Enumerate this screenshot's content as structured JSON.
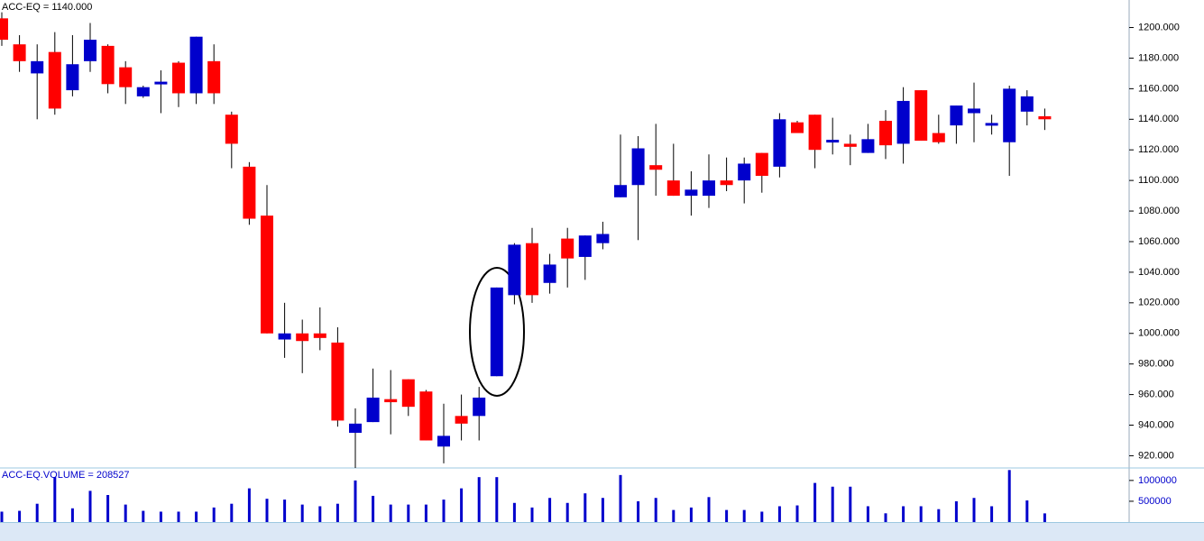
{
  "chart_data": [
    {
      "type": "candlestick",
      "title": "ACC-EQ = 1140.000",
      "open": [
        1206,
        1189,
        1170,
        1184,
        1159,
        1178,
        1188,
        1174,
        1155,
        1163,
        1177,
        1157,
        1178,
        1143,
        1109,
        1077,
        996,
        1000,
        1000,
        994,
        935,
        942,
        957,
        970,
        962,
        926,
        946,
        946,
        972,
        1025,
        1059,
        1033,
        1062,
        1050,
        1059,
        1089,
        1097,
        1110,
        1100,
        1090,
        1090,
        1100,
        1100,
        1118,
        1109,
        1138,
        1143,
        1125,
        1124,
        1118,
        1139,
        1124,
        1159,
        1131,
        1136,
        1144,
        1136,
        1125,
        1145,
        1142
      ],
      "high": [
        1210,
        1195,
        1189,
        1197,
        1195,
        1203,
        1189,
        1178,
        1162,
        1172,
        1178,
        1194,
        1189,
        1145,
        1112,
        1097,
        1020,
        1009,
        1017,
        1004,
        951,
        977,
        976,
        970,
        963,
        954,
        960,
        965,
        1030,
        1059,
        1069,
        1052,
        1069,
        1064,
        1073,
        1130,
        1129,
        1137,
        1124,
        1106,
        1117,
        1115,
        1115,
        1118,
        1144,
        1139,
        1143,
        1141,
        1130,
        1137,
        1146,
        1161,
        1159,
        1143,
        1149,
        1164,
        1143,
        1162,
        1159,
        1147
      ],
      "low": [
        1188,
        1171,
        1140,
        1143,
        1155,
        1171,
        1157,
        1150,
        1154,
        1144,
        1148,
        1150,
        1150,
        1108,
        1071,
        1000,
        984,
        974,
        989,
        939,
        912,
        942,
        934,
        946,
        930,
        915,
        930,
        930,
        972,
        1019,
        1020,
        1026,
        1030,
        1035,
        1055,
        1089,
        1061,
        1090,
        1090,
        1077,
        1082,
        1093,
        1085,
        1092,
        1102,
        1131,
        1108,
        1117,
        1110,
        1118,
        1114,
        1111,
        1126,
        1124,
        1124,
        1125,
        1130,
        1103,
        1136,
        1133
      ],
      "close": [
        1192,
        1178,
        1178,
        1147,
        1176,
        1192,
        1163,
        1161,
        1161,
        1164,
        1157,
        1194,
        1157,
        1124,
        1075,
        1000,
        1000,
        995,
        997,
        943,
        941,
        958,
        955,
        952,
        930,
        933,
        941,
        958,
        1030,
        1058,
        1025,
        1045,
        1049,
        1064,
        1065,
        1097,
        1121,
        1107,
        1090,
        1094,
        1100,
        1097,
        1111,
        1103,
        1140,
        1131,
        1120,
        1126,
        1122,
        1127,
        1123,
        1152,
        1126,
        1125,
        1149,
        1147,
        1137,
        1160,
        1155,
        1140
      ],
      "up_color": "#0000cc",
      "down_color": "#ff0000",
      "ylim": [
        912,
        1218
      ],
      "yticks": [
        {
          "value": 920,
          "label": "920.000"
        },
        {
          "value": 940,
          "label": "940.000"
        },
        {
          "value": 960,
          "label": "960.000"
        },
        {
          "value": 980,
          "label": "980.000"
        },
        {
          "value": 1000,
          "label": "1000.000"
        },
        {
          "value": 1020,
          "label": "1020.000"
        },
        {
          "value": 1040,
          "label": "1040.000"
        },
        {
          "value": 1060,
          "label": "1060.000"
        },
        {
          "value": 1080,
          "label": "1080.000"
        },
        {
          "value": 1100,
          "label": "1100.000"
        },
        {
          "value": 1120,
          "label": "1120.000"
        },
        {
          "value": 1140,
          "label": "1140.000"
        },
        {
          "value": 1160,
          "label": "1160.000"
        },
        {
          "value": 1180,
          "label": "1180.000"
        },
        {
          "value": 1200,
          "label": "1200.000"
        }
      ]
    },
    {
      "type": "bar",
      "title": "ACC-EQ.VOLUME = 208527",
      "values": [
        250000,
        270000,
        440000,
        1080000,
        330000,
        750000,
        650000,
        420000,
        270000,
        250000,
        250000,
        250000,
        350000,
        440000,
        810000,
        560000,
        540000,
        420000,
        380000,
        440000,
        1000000,
        630000,
        420000,
        420000,
        420000,
        540000,
        810000,
        1080000,
        1080000,
        460000,
        350000,
        580000,
        460000,
        690000,
        580000,
        1130000,
        500000,
        580000,
        290000,
        350000,
        600000,
        290000,
        290000,
        250000,
        380000,
        400000,
        940000,
        850000,
        850000,
        380000,
        210000,
        380000,
        380000,
        310000,
        500000,
        580000,
        380000,
        1250000,
        520000,
        208527
      ],
      "color": "#0000cc",
      "ylim": [
        0,
        1300000
      ],
      "yticks": [
        500000,
        1000000
      ]
    }
  ]
}
